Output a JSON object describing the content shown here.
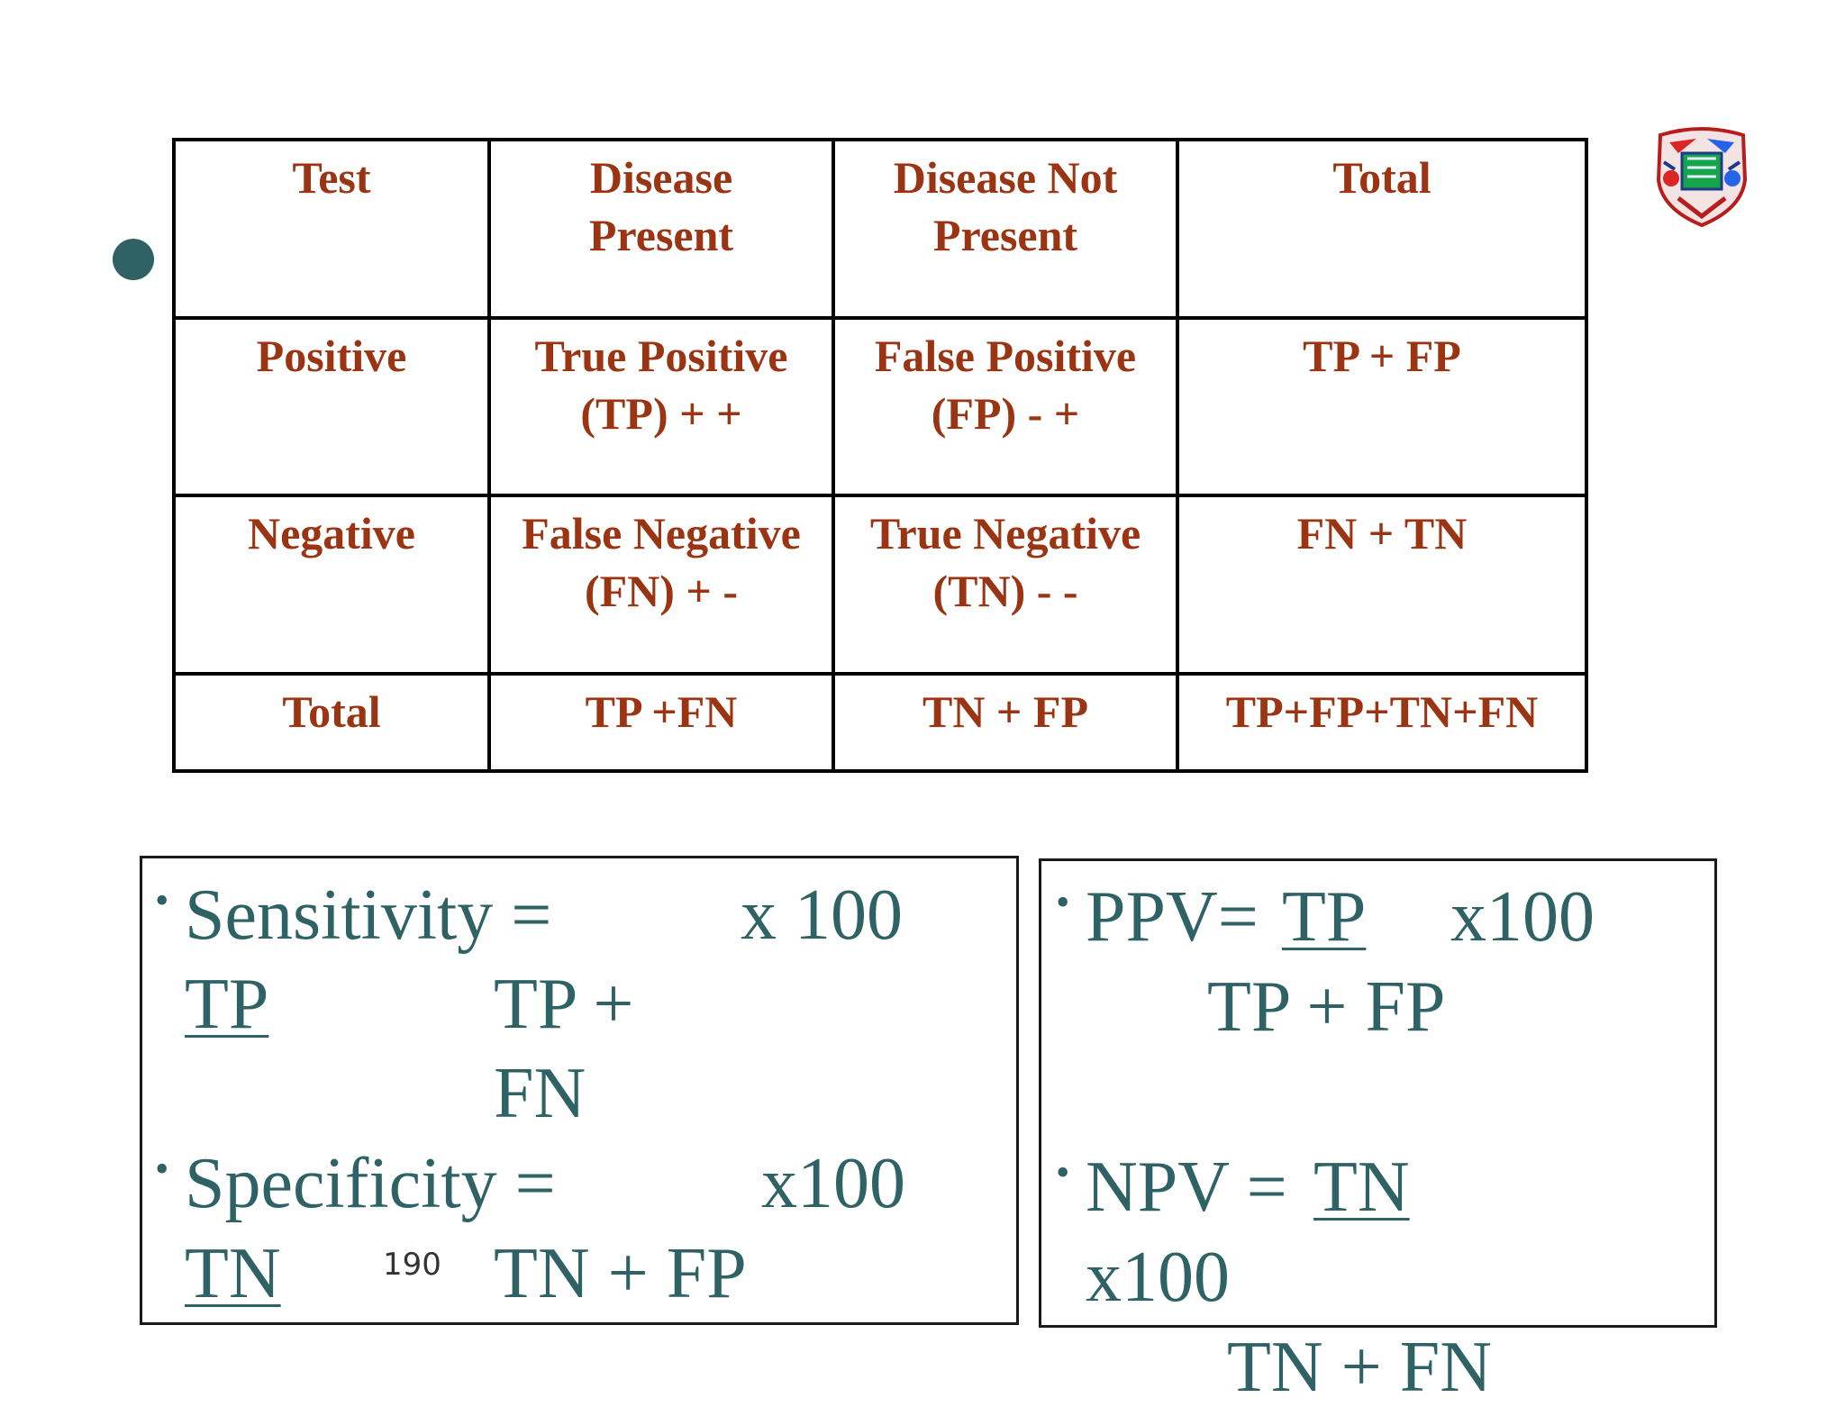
{
  "table": {
    "header": [
      "Test",
      "Disease Present",
      "Disease Not Present",
      "Total"
    ],
    "header_lines": [
      [
        "Test"
      ],
      [
        "Disease",
        "Present"
      ],
      [
        "Disease Not",
        "Present"
      ],
      [
        "Total"
      ]
    ],
    "rows": [
      {
        "label": "Positive",
        "cells": [
          [
            "True Positive",
            "(TP) + +"
          ],
          [
            "False Positive",
            "(FP) - +"
          ],
          [
            "TP + FP"
          ]
        ]
      },
      {
        "label": "Negative",
        "cells": [
          [
            "False Negative",
            "(FN) + -"
          ],
          [
            "True Negative",
            "(TN) - -"
          ],
          [
            "FN + TN"
          ]
        ]
      },
      {
        "label": "Total",
        "cells": [
          [
            "TP +FN"
          ],
          [
            "TN + FP"
          ],
          [
            "TP+FP+TN+FN"
          ]
        ]
      }
    ]
  },
  "formulas_left": {
    "bullet": "•",
    "sensitivity_label": "Sensitivity =",
    "sensitivity_mult": "x 100",
    "sensitivity_numerator": "TP",
    "sensitivity_denominator_1": "TP +",
    "sensitivity_denominator_2": "FN",
    "specificity_label": "Specificity =",
    "specificity_mult": "x100",
    "specificity_numerator": "TN",
    "specificity_denominator": "TN + FP"
  },
  "formulas_right": {
    "bullet": "•",
    "ppv_label": "PPV=",
    "ppv_numerator": "TP",
    "ppv_mult": "x100",
    "ppv_denominator": "TP + FP",
    "npv_label": "NPV =",
    "npv_numerator": "TN",
    "npv_mult": "x100",
    "npv_denominator": "TN + FN"
  },
  "page_number": "190",
  "colors": {
    "table_text": "#9a3412",
    "formula_text": "#2e6264",
    "accent_dot": "#2e6264"
  },
  "icons": {
    "logo": "crest-emblem-icon",
    "bullet": "bullet-dot-icon"
  }
}
